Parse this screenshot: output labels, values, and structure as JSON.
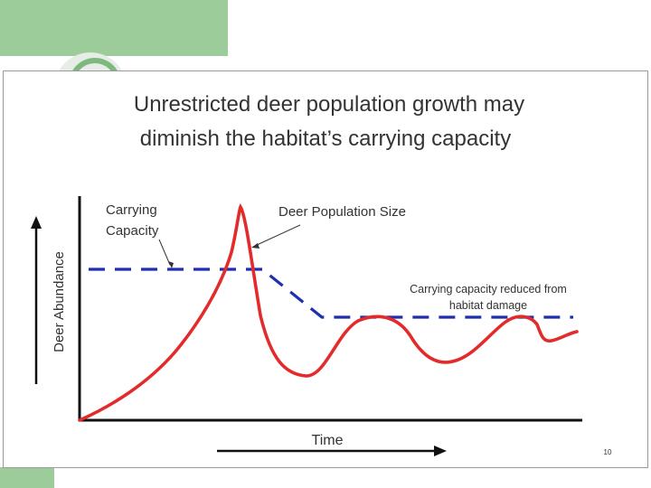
{
  "slide": {
    "title_line1": "Unrestricted deer population growth may",
    "title_line2": "diminish the habitat’s carrying capacity",
    "page_number": "10"
  },
  "diagram": {
    "y_axis_label": "Deer Abundance",
    "x_axis_label": "Time",
    "carrying_capacity_label_line1": "Carrying",
    "carrying_capacity_label_line2": "Capacity",
    "population_label": "Deer Population Size",
    "reduced_label_line1": "Carrying capacity reduced from",
    "reduced_label_line2": "habitat damage"
  },
  "colors": {
    "population_curve": "#e32b2b",
    "capacity_line": "#1f2fb0",
    "axis": "#111111",
    "text": "#333333",
    "accent_green": "#9ccc9a"
  }
}
